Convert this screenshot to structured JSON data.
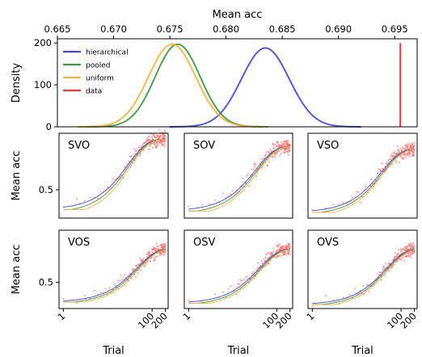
{
  "chart_data": [
    {
      "type": "line",
      "panel": "top",
      "xlabel": "Mean acc",
      "ylabel": "Density",
      "xlim": [
        0.665,
        0.697
      ],
      "ylim": [
        0,
        210
      ],
      "xticks": [
        0.665,
        0.67,
        0.675,
        0.68,
        0.685,
        0.69,
        0.695
      ],
      "xtick_labels": [
        "0.665",
        "0.670",
        "0.675",
        "0.680",
        "0.685",
        "0.690",
        "0.695"
      ],
      "yticks": [
        0,
        100,
        200
      ],
      "ytick_labels": [
        "0",
        "100",
        "200"
      ],
      "x_axis_position": "top",
      "legend_placement": "top-left",
      "series": [
        {
          "name": "hierarchical",
          "color": "#4444e8",
          "distribution": {
            "mean": 0.6835,
            "sd": 0.00213,
            "peak": 188
          }
        },
        {
          "name": "pooled",
          "color": "#3a9a3a",
          "distribution": {
            "mean": 0.6757,
            "sd": 0.002,
            "peak": 197
          }
        },
        {
          "name": "uniform",
          "color": "#f2b33d",
          "distribution": {
            "mean": 0.6752,
            "sd": 0.0021,
            "peak": 197
          }
        },
        {
          "name": "data",
          "color": "#ff3333",
          "vline": 0.6955
        }
      ]
    },
    {
      "type": "line",
      "panel": "grid",
      "xscale": "log",
      "xlabel": "Trial",
      "ylabel": "Mean acc",
      "xlim": [
        0.8,
        230
      ],
      "ylim": [
        0.3,
        0.9
      ],
      "xticks": [
        1,
        100,
        200
      ],
      "xtick_labels": [
        "1",
        "100",
        "200"
      ],
      "ytick": 0.5,
      "ytick_label": "0.5",
      "subplots": [
        {
          "title": "SVO",
          "start": 0.36,
          "plateau": 0.86,
          "k": 0.035
        },
        {
          "title": "SOV",
          "start": 0.35,
          "plateau": 0.81,
          "k": 0.03
        },
        {
          "title": "VSO",
          "start": 0.34,
          "plateau": 0.79,
          "k": 0.028
        },
        {
          "title": "VOS",
          "start": 0.35,
          "plateau": 0.76,
          "k": 0.022
        },
        {
          "title": "OSV",
          "start": 0.34,
          "plateau": 0.76,
          "k": 0.025
        },
        {
          "title": "OVS",
          "start": 0.33,
          "plateau": 0.76,
          "k": 0.022
        }
      ],
      "series": [
        {
          "name": "hierarchical",
          "color": "#4444e8"
        },
        {
          "name": "pooled",
          "color": "#3a9a3a"
        },
        {
          "name": "uniform",
          "color": "#f2b33d"
        },
        {
          "name": "data",
          "color": "#ff6666"
        }
      ]
    }
  ]
}
